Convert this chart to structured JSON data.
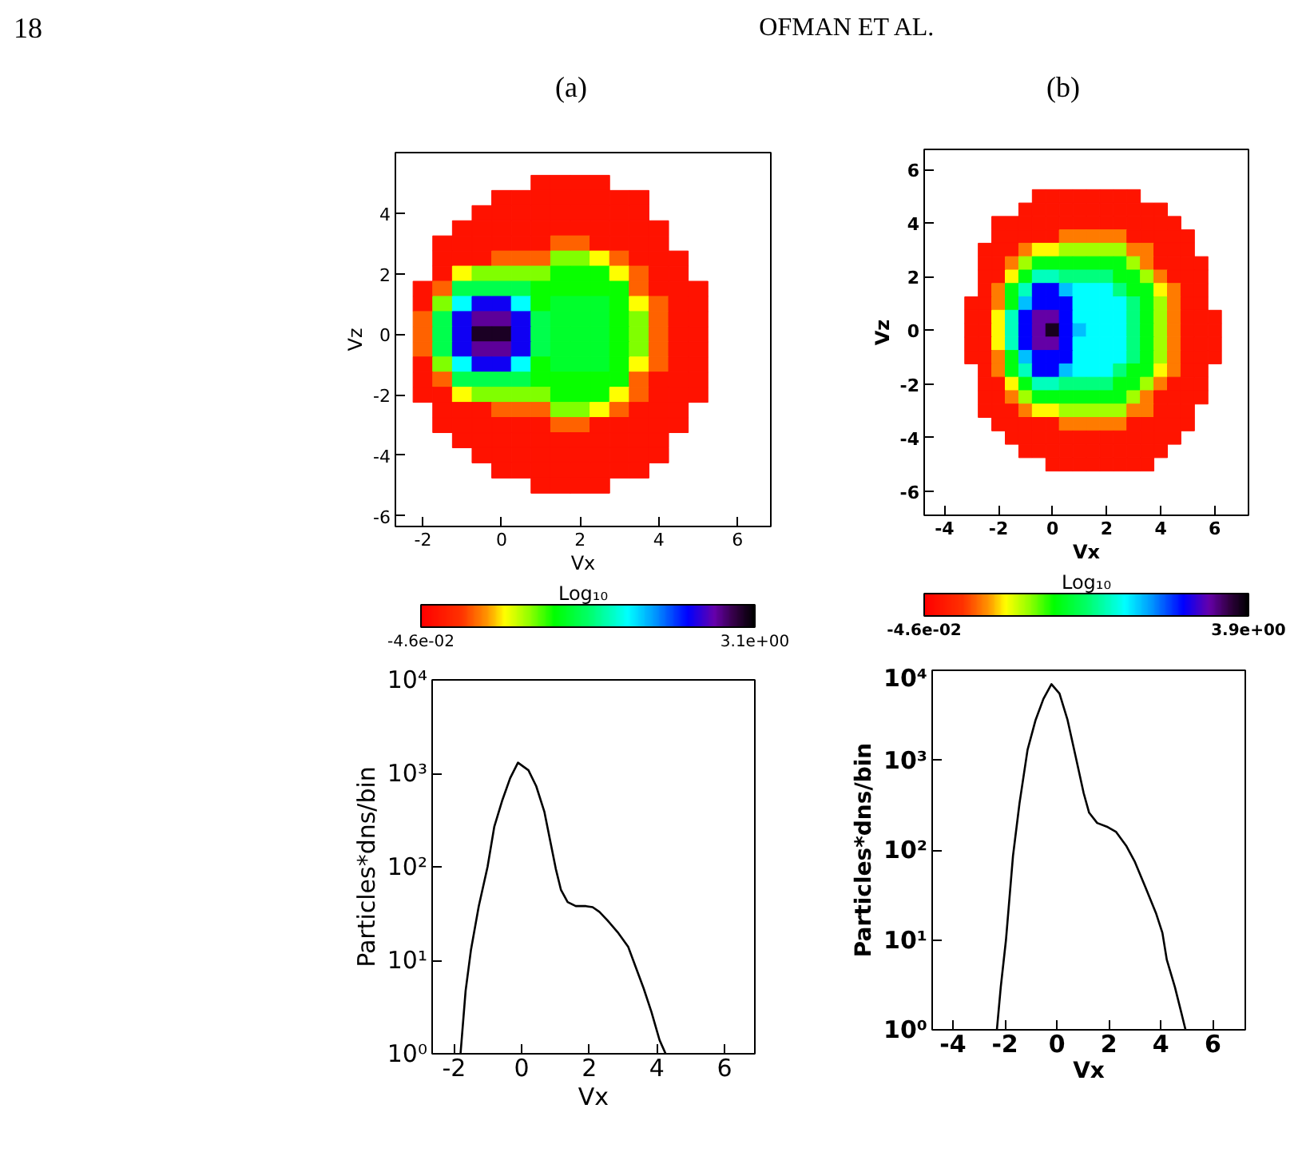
{
  "chart_data": [
    {
      "type": "scatter",
      "title": "(a)",
      "annotations": [
        "18",
        "OFMAN ET AL."
      ],
      "xlabel": "Vx",
      "ylabel": "Vz",
      "clabel": "Log₁₀",
      "marker": "square",
      "xlim": [
        -2.7,
        6.85
      ],
      "ylim": [
        -6.35,
        6.0
      ],
      "xticks": [
        -2,
        0,
        2,
        4,
        6
      ],
      "yticks": [
        -6,
        -4,
        -2,
        0,
        2,
        4
      ],
      "clim": [
        -0.046,
        3.1
      ],
      "cticks": [
        {
          "value": -0.046,
          "label": "-4.6e-02"
        },
        {
          "value": 3.1,
          "label": "3.1e+00"
        }
      ],
      "x": [
        1,
        1.5,
        2,
        2.5,
        0,
        0.5,
        1,
        1.5,
        2,
        2.5,
        3,
        3.5,
        -0.5,
        0,
        0.5,
        1,
        1.5,
        2,
        2.5,
        3,
        3.5,
        -1,
        -0.5,
        0,
        0.5,
        1,
        1.5,
        2,
        2.5,
        3,
        3.5,
        4,
        -1.5,
        -1,
        -0.5,
        0,
        0.5,
        1,
        1.5,
        2,
        2.5,
        3,
        3.5,
        4,
        -1.5,
        -1,
        -0.5,
        0,
        0.5,
        1,
        1.5,
        2,
        2.5,
        3,
        3.5,
        4,
        4.5,
        -1.5,
        -1,
        -0.5,
        0,
        0.5,
        1,
        1.5,
        2,
        2.5,
        3,
        3.5,
        4,
        4.5,
        -2,
        -1.5,
        -1,
        -0.5,
        0,
        0.5,
        1,
        1.5,
        2,
        2.5,
        3,
        3.5,
        4,
        4.5,
        5,
        -2,
        -1.5,
        -1,
        -0.5,
        0,
        0.5,
        1,
        1.5,
        2,
        2.5,
        3,
        3.5,
        4,
        4.5,
        5,
        -2,
        -1.5,
        -1,
        -0.5,
        0,
        0.5,
        1,
        1.5,
        2,
        2.5,
        3,
        3.5,
        4,
        4.5,
        5,
        -2,
        -1.5,
        -1,
        -0.5,
        0,
        0.5,
        1,
        1.5,
        2,
        2.5,
        3,
        3.5,
        4,
        4.5,
        5,
        -2,
        -1.5,
        -1,
        -0.5,
        0,
        0.5,
        1,
        1.5,
        2,
        2.5,
        3,
        3.5,
        4,
        4.5,
        5,
        -2,
        -1.5,
        -1,
        -0.5,
        0,
        0.5,
        1,
        1.5,
        2,
        2.5,
        3,
        3.5,
        4,
        4.5,
        5,
        -2,
        -1.5,
        -1,
        -0.5,
        0,
        0.5,
        1,
        1.5,
        2,
        2.5,
        3,
        3.5,
        4,
        4.5,
        5,
        -2,
        -1.5,
        -1,
        -0.5,
        0,
        0.5,
        1,
        1.5,
        2,
        2.5,
        3,
        3.5,
        4,
        4.5,
        5,
        -1.5,
        -1,
        -0.5,
        0,
        0.5,
        1,
        1.5,
        2,
        2.5,
        3,
        3.5,
        4,
        4.5,
        -1.5,
        -1,
        -0.5,
        0,
        0.5,
        1,
        1.5,
        2,
        2.5,
        3,
        3.5,
        4,
        4.5,
        -1,
        -0.5,
        0,
        0.5,
        1,
        1.5,
        2,
        2.5,
        3,
        3.5,
        4,
        -0.5,
        0,
        0.5,
        1,
        1.5,
        2,
        2.5,
        3,
        3.5,
        4,
        0,
        0.5,
        1,
        1.5,
        2,
        2.5,
        3,
        3.5,
        1,
        1.5,
        2,
        2.5
      ],
      "values": [
        5,
        5,
        5,
        5,
        4.5,
        4.5,
        4.5,
        4.5,
        4.5,
        4.5,
        4.5,
        4.5,
        4,
        4,
        4,
        4,
        4,
        4,
        4,
        4,
        4,
        3.5,
        3.5,
        3.5,
        3.5,
        3.5,
        3.5,
        3.5,
        3.5,
        3.5,
        3.5,
        3.5,
        3,
        3,
        3,
        3,
        3,
        3,
        3,
        3,
        3,
        3,
        3,
        3,
        2.5,
        2.5,
        2.5,
        2.5,
        2.5,
        2.5,
        2.5,
        2.5,
        2.5,
        2.5,
        2.5,
        2.5,
        2.5,
        2,
        2,
        2,
        2,
        2,
        2,
        2,
        2,
        2,
        2,
        2,
        2,
        2,
        1.5,
        1.5,
        1.5,
        1.5,
        1.5,
        1.5,
        1.5,
        1.5,
        1.5,
        1.5,
        1.5,
        1.5,
        1.5,
        1.5,
        1.5,
        1,
        1,
        1,
        1,
        1,
        1,
        1,
        1,
        1,
        1,
        1,
        1,
        1,
        1,
        1,
        0.5,
        0.5,
        0.5,
        0.5,
        0.5,
        0.5,
        0.5,
        0.5,
        0.5,
        0.5,
        0.5,
        0.5,
        0.5,
        0.5,
        0.5,
        0,
        0,
        0,
        0,
        0,
        0,
        0,
        0,
        0,
        0,
        0,
        0,
        0,
        0,
        0,
        -0.5,
        -0.5,
        -0.5,
        -0.5,
        -0.5,
        -0.5,
        -0.5,
        -0.5,
        -0.5,
        -0.5,
        -0.5,
        -0.5,
        -0.5,
        -0.5,
        -0.5,
        -1,
        -1,
        -1,
        -1,
        -1,
        -1,
        -1,
        -1,
        -1,
        -1,
        -1,
        -1,
        -1,
        -1,
        -1,
        -1.5,
        -1.5,
        -1.5,
        -1.5,
        -1.5,
        -1.5,
        -1.5,
        -1.5,
        -1.5,
        -1.5,
        -1.5,
        -1.5,
        -1.5,
        -1.5,
        -1.5,
        -2,
        -2,
        -2,
        -2,
        -2,
        -2,
        -2,
        -2,
        -2,
        -2,
        -2,
        -2,
        -2,
        -2,
        -2,
        -2.5,
        -2.5,
        -2.5,
        -2.5,
        -2.5,
        -2.5,
        -2.5,
        -2.5,
        -2.5,
        -2.5,
        -2.5,
        -2.5,
        -2.5,
        -3,
        -3,
        -3,
        -3,
        -3,
        -3,
        -3,
        -3,
        -3,
        -3,
        -3,
        -3,
        -3,
        -3.5,
        -3.5,
        -3.5,
        -3.5,
        -3.5,
        -3.5,
        -3.5,
        -3.5,
        -3.5,
        -3.5,
        -3.5,
        -4,
        -4,
        -4,
        -4,
        -4,
        -4,
        -4,
        -4,
        -4,
        -4,
        -4.5,
        -4.5,
        -4.5,
        -4.5,
        -4.5,
        -4.5,
        -4.5,
        -4.5,
        -5,
        -5,
        -5,
        -5
      ],
      "cvalues": [
        0.1,
        0.1,
        0.1,
        0.1,
        0.1,
        0.1,
        0.1,
        0.1,
        0.1,
        0.1,
        0.1,
        0.1,
        0.1,
        0.1,
        0.1,
        0.1,
        0.1,
        0.1,
        0.1,
        0.1,
        0.1,
        0.1,
        0.1,
        0.1,
        0.1,
        0.1,
        0.1,
        0.1,
        0.1,
        0.1,
        0.1,
        0.1,
        0.1,
        0.1,
        0.1,
        0.1,
        0.1,
        0.1,
        0.45,
        0.45,
        0.1,
        0.1,
        0.1,
        0.1,
        0.1,
        0.1,
        0.1,
        0.45,
        0.45,
        0.45,
        1.0,
        1.0,
        0.75,
        0.45,
        0.1,
        0.1,
        0.1,
        0.1,
        0.75,
        1.0,
        1.0,
        1.0,
        1.0,
        1.2,
        1.2,
        1.2,
        0.75,
        0.45,
        0.1,
        0.1,
        0.1,
        0.45,
        1.45,
        1.45,
        1.45,
        1.45,
        1.2,
        1.2,
        1.2,
        1.2,
        1.2,
        0.45,
        0.1,
        0.1,
        0.1,
        0.1,
        1.0,
        1.9,
        2.5,
        2.5,
        1.9,
        1.2,
        1.35,
        1.35,
        1.35,
        1.2,
        0.75,
        0.45,
        0.1,
        0.1,
        0.45,
        1.45,
        2.5,
        2.75,
        2.75,
        2.5,
        1.45,
        1.35,
        1.35,
        1.35,
        1.2,
        1.0,
        0.45,
        0.1,
        0.1,
        0.45,
        1.45,
        2.5,
        3.0,
        3.0,
        2.5,
        1.45,
        1.35,
        1.35,
        1.35,
        1.2,
        1.0,
        0.45,
        0.1,
        0.1,
        0.45,
        1.45,
        2.5,
        2.75,
        2.75,
        2.5,
        1.45,
        1.35,
        1.35,
        1.35,
        1.2,
        1.0,
        0.45,
        0.1,
        0.1,
        0.1,
        1.0,
        1.9,
        2.5,
        2.5,
        1.9,
        1.2,
        1.35,
        1.35,
        1.35,
        1.2,
        0.75,
        0.45,
        0.1,
        0.1,
        0.1,
        0.45,
        1.45,
        1.45,
        1.45,
        1.45,
        1.2,
        1.2,
        1.2,
        1.2,
        1.2,
        0.45,
        0.1,
        0.1,
        0.1,
        0.1,
        0.1,
        0.75,
        1.0,
        1.0,
        1.0,
        1.0,
        1.2,
        1.2,
        1.2,
        0.75,
        0.45,
        0.1,
        0.1,
        0.1,
        0.1,
        0.1,
        0.1,
        0.45,
        0.45,
        0.45,
        1.0,
        1.0,
        0.75,
        0.45,
        0.1,
        0.1,
        0.1,
        0.1,
        0.1,
        0.1,
        0.1,
        0.1,
        0.1,
        0.45,
        0.45,
        0.1,
        0.1,
        0.1,
        0.1,
        0.1,
        0.1,
        0.1,
        0.1,
        0.1,
        0.1,
        0.1,
        0.1,
        0.1,
        0.1,
        0.1,
        0.1,
        0.1,
        0.1,
        0.1,
        0.1,
        0.1,
        0.1,
        0.1,
        0.1,
        0.1,
        0.1,
        0.1,
        0.1,
        0.1,
        0.1,
        0.1,
        0.1,
        0.1,
        0.1,
        0.1,
        0.1,
        0.1,
        0.1
      ]
    },
    {
      "type": "scatter",
      "title": "(b)",
      "xlabel": "Vx",
      "ylabel": "Vz",
      "clabel": "Log₁₀",
      "marker": "square",
      "xlim": [
        -4.75,
        7.25
      ],
      "ylim": [
        -6.9,
        6.75
      ],
      "xticks": [
        -4,
        -2,
        0,
        2,
        4,
        6
      ],
      "yticks": [
        -6,
        -4,
        -2,
        0,
        2,
        4,
        6
      ],
      "clim": [
        -0.046,
        3.9
      ],
      "cticks": [
        {
          "value": -0.046,
          "label": "-4.6e-02"
        },
        {
          "value": 3.9,
          "label": "3.9e+00"
        }
      ],
      "x": [
        -0.5,
        0,
        0.5,
        1,
        1.5,
        2,
        2.5,
        3,
        -1,
        -0.5,
        0,
        0.5,
        1,
        1.5,
        2,
        2.5,
        3,
        3.5,
        4,
        -2,
        -1.5,
        -1,
        -0.5,
        0,
        0.5,
        1,
        1.5,
        2,
        2.5,
        3,
        3.5,
        4,
        4.5,
        -2,
        -1.5,
        -1,
        -0.5,
        0,
        0.5,
        1,
        1.5,
        2,
        2.5,
        3,
        3.5,
        4,
        4.5,
        5,
        -2.5,
        -2,
        -1.5,
        -1,
        -0.5,
        0,
        0.5,
        1,
        1.5,
        2,
        2.5,
        3,
        3.5,
        4,
        4.5,
        5,
        -2.5,
        -2,
        -1.5,
        -1,
        -0.5,
        0,
        0.5,
        1,
        1.5,
        2,
        2.5,
        3,
        3.5,
        4,
        4.5,
        5,
        5.5,
        -2.5,
        -2,
        -1.5,
        -1,
        -0.5,
        0,
        0.5,
        1,
        1.5,
        2,
        2.5,
        3,
        3.5,
        4,
        4.5,
        5,
        5.5,
        -2.5,
        -2,
        -1.5,
        -1,
        -0.5,
        0,
        0.5,
        1,
        1.5,
        2,
        2.5,
        3,
        3.5,
        4,
        4.5,
        5,
        5.5,
        -3,
        -2.5,
        -2,
        -1.5,
        -1,
        -0.5,
        0,
        0.5,
        1,
        1.5,
        2,
        2.5,
        3,
        3.5,
        4,
        4.5,
        5,
        5.5,
        -3,
        -2.5,
        -2,
        -1.5,
        -1,
        -0.5,
        0,
        0.5,
        1,
        1.5,
        2,
        2.5,
        3,
        3.5,
        4,
        4.5,
        5,
        5.5,
        6,
        -3,
        -2.5,
        -2,
        -1.5,
        -1,
        -0.5,
        0,
        0.5,
        1,
        1.5,
        2,
        2.5,
        3,
        3.5,
        4,
        4.5,
        5,
        5.5,
        6,
        -3,
        -2.5,
        -2,
        -1.5,
        -1,
        -0.5,
        0,
        0.5,
        1,
        1.5,
        2,
        2.5,
        3,
        3.5,
        4,
        4.5,
        5,
        5.5,
        6,
        -3,
        -2.5,
        -2,
        -1.5,
        -1,
        -0.5,
        0,
        0.5,
        1,
        1.5,
        2,
        2.5,
        3,
        3.5,
        4,
        4.5,
        5,
        5.5,
        6,
        -2.5,
        -2,
        -1.5,
        -1,
        -0.5,
        0,
        0.5,
        1,
        1.5,
        2,
        2.5,
        3,
        3.5,
        4,
        4.5,
        5,
        5.5,
        -2.5,
        -2,
        -1.5,
        -1,
        -0.5,
        0,
        0.5,
        1,
        1.5,
        2,
        2.5,
        3,
        3.5,
        4,
        4.5,
        5,
        5.5,
        -2.5,
        -2,
        -1.5,
        -1,
        -0.5,
        0,
        0.5,
        1,
        1.5,
        2,
        2.5,
        3,
        3.5,
        4,
        4.5,
        5,
        5.5,
        -2.5,
        -2,
        -1.5,
        -1,
        -0.5,
        0,
        0.5,
        1,
        1.5,
        2,
        2.5,
        3,
        3.5,
        4,
        4.5,
        5,
        -2,
        -1.5,
        -1,
        -0.5,
        0,
        0.5,
        1,
        1.5,
        2,
        2.5,
        3,
        3.5,
        4,
        4.5,
        5,
        -1.5,
        -1,
        -0.5,
        0,
        0.5,
        1,
        1.5,
        2,
        2.5,
        3,
        3.5,
        4,
        4.5,
        -1,
        -0.5,
        0,
        0.5,
        1,
        1.5,
        2,
        2.5,
        3,
        3.5,
        4,
        0,
        0.5,
        1,
        1.5,
        2,
        2.5,
        3,
        3.5
      ],
      "values": [
        5,
        5,
        5,
        5,
        5,
        5,
        5,
        5,
        4.5,
        4.5,
        4.5,
        4.5,
        4.5,
        4.5,
        4.5,
        4.5,
        4.5,
        4.5,
        4.5,
        4,
        4,
        4,
        4,
        4,
        4,
        4,
        4,
        4,
        4,
        4,
        4,
        4,
        4,
        3.5,
        3.5,
        3.5,
        3.5,
        3.5,
        3.5,
        3.5,
        3.5,
        3.5,
        3.5,
        3.5,
        3.5,
        3.5,
        3.5,
        3.5,
        3,
        3,
        3,
        3,
        3,
        3,
        3,
        3,
        3,
        3,
        3,
        3,
        3,
        3,
        3,
        3,
        2.5,
        2.5,
        2.5,
        2.5,
        2.5,
        2.5,
        2.5,
        2.5,
        2.5,
        2.5,
        2.5,
        2.5,
        2.5,
        2.5,
        2.5,
        2.5,
        2.5,
        2,
        2,
        2,
        2,
        2,
        2,
        2,
        2,
        2,
        2,
        2,
        2,
        2,
        2,
        2,
        2,
        2,
        1.5,
        1.5,
        1.5,
        1.5,
        1.5,
        1.5,
        1.5,
        1.5,
        1.5,
        1.5,
        1.5,
        1.5,
        1.5,
        1.5,
        1.5,
        1.5,
        1.5,
        1,
        1,
        1,
        1,
        1,
        1,
        1,
        1,
        1,
        1,
        1,
        1,
        1,
        1,
        1,
        1,
        1,
        1,
        0.5,
        0.5,
        0.5,
        0.5,
        0.5,
        0.5,
        0.5,
        0.5,
        0.5,
        0.5,
        0.5,
        0.5,
        0.5,
        0.5,
        0.5,
        0.5,
        0.5,
        0.5,
        0.5,
        0,
        0,
        0,
        0,
        0,
        0,
        0,
        0,
        0,
        0,
        0,
        0,
        0,
        0,
        0,
        0,
        0,
        0,
        0,
        -0.5,
        -0.5,
        -0.5,
        -0.5,
        -0.5,
        -0.5,
        -0.5,
        -0.5,
        -0.5,
        -0.5,
        -0.5,
        -0.5,
        -0.5,
        -0.5,
        -0.5,
        -0.5,
        -0.5,
        -0.5,
        -0.5,
        -1,
        -1,
        -1,
        -1,
        -1,
        -1,
        -1,
        -1,
        -1,
        -1,
        -1,
        -1,
        -1,
        -1,
        -1,
        -1,
        -1,
        -1,
        -1,
        -1.5,
        -1.5,
        -1.5,
        -1.5,
        -1.5,
        -1.5,
        -1.5,
        -1.5,
        -1.5,
        -1.5,
        -1.5,
        -1.5,
        -1.5,
        -1.5,
        -1.5,
        -1.5,
        -1.5,
        -2,
        -2,
        -2,
        -2,
        -2,
        -2,
        -2,
        -2,
        -2,
        -2,
        -2,
        -2,
        -2,
        -2,
        -2,
        -2,
        -2,
        -2.5,
        -2.5,
        -2.5,
        -2.5,
        -2.5,
        -2.5,
        -2.5,
        -2.5,
        -2.5,
        -2.5,
        -2.5,
        -2.5,
        -2.5,
        -2.5,
        -2.5,
        -2.5,
        -2.5,
        -3,
        -3,
        -3,
        -3,
        -3,
        -3,
        -3,
        -3,
        -3,
        -3,
        -3,
        -3,
        -3,
        -3,
        -3,
        -3,
        -3.5,
        -3.5,
        -3.5,
        -3.5,
        -3.5,
        -3.5,
        -3.5,
        -3.5,
        -3.5,
        -3.5,
        -3.5,
        -3.5,
        -3.5,
        -3.5,
        -3.5,
        -4,
        -4,
        -4,
        -4,
        -4,
        -4,
        -4,
        -4,
        -4,
        -4,
        -4,
        -4,
        -4,
        -4.5,
        -4.5,
        -4.5,
        -4.5,
        -4.5,
        -4.5,
        -4.5,
        -4.5,
        -4.5,
        -4.5,
        -4.5,
        -5,
        -5,
        -5,
        -5,
        -5,
        -5,
        -5,
        -5
      ],
      "cvalues": [
        0.15,
        0.15,
        0.15,
        0.15,
        0.15,
        0.15,
        0.15,
        0.15,
        0.15,
        0.15,
        0.15,
        0.15,
        0.15,
        0.15,
        0.15,
        0.15,
        0.15,
        0.15,
        0.15,
        0.15,
        0.15,
        0.15,
        0.15,
        0.15,
        0.15,
        0.15,
        0.15,
        0.15,
        0.15,
        0.15,
        0.15,
        0.15,
        0.15,
        0.15,
        0.15,
        0.15,
        0.15,
        0.15,
        0.66,
        0.66,
        0.66,
        0.66,
        0.66,
        0.15,
        0.15,
        0.15,
        0.15,
        0.15,
        0.15,
        0.15,
        0.15,
        0.66,
        0.94,
        0.94,
        1.2,
        1.2,
        1.2,
        1.2,
        1.2,
        0.66,
        0.66,
        0.15,
        0.15,
        0.15,
        0.15,
        0.15,
        0.66,
        1.2,
        1.6,
        1.6,
        1.6,
        1.6,
        1.6,
        1.6,
        1.6,
        1.2,
        0.66,
        0.15,
        0.15,
        0.15,
        0.15,
        0.15,
        0.15,
        0.94,
        1.6,
        2.2,
        2.2,
        2.0,
        2.0,
        2.0,
        2.0,
        1.6,
        1.6,
        1.2,
        0.66,
        0.15,
        0.15,
        0.15,
        0.15,
        0.66,
        1.6,
        2.2,
        3.1,
        3.1,
        2.6,
        2.4,
        2.4,
        2.4,
        2.0,
        1.6,
        1.6,
        0.94,
        0.66,
        0.15,
        0.15,
        0.15,
        0.15,
        0.66,
        1.6,
        2.6,
        3.1,
        3.1,
        3.1,
        2.4,
        2.4,
        2.4,
        2.4,
        2.0,
        1.6,
        1.2,
        0.66,
        0.15,
        0.15,
        0.15,
        0.15,
        0.94,
        2.2,
        3.1,
        3.43,
        3.43,
        3.1,
        2.4,
        2.4,
        2.4,
        2.4,
        2.0,
        1.6,
        1.2,
        0.66,
        0.15,
        0.15,
        0.15,
        0.15,
        0.15,
        0.94,
        2.2,
        3.1,
        3.43,
        3.78,
        3.1,
        2.6,
        2.4,
        2.4,
        2.4,
        2.0,
        1.6,
        1.2,
        0.66,
        0.15,
        0.15,
        0.15,
        0.15,
        0.15,
        0.94,
        2.2,
        3.1,
        3.43,
        3.43,
        3.1,
        2.4,
        2.4,
        2.4,
        2.4,
        2.0,
        1.6,
        1.2,
        0.66,
        0.15,
        0.15,
        0.15,
        0.15,
        0.15,
        0.66,
        1.6,
        2.6,
        3.1,
        3.1,
        3.1,
        2.4,
        2.4,
        2.4,
        2.4,
        2.0,
        1.6,
        1.2,
        0.66,
        0.15,
        0.15,
        0.15,
        0.15,
        0.66,
        1.6,
        2.2,
        3.1,
        3.1,
        2.6,
        2.4,
        2.4,
        2.4,
        2.0,
        1.6,
        1.6,
        0.94,
        0.66,
        0.15,
        0.15,
        0.15,
        0.15,
        0.94,
        1.6,
        2.2,
        2.2,
        2.0,
        2.0,
        2.0,
        2.0,
        1.6,
        1.6,
        1.2,
        0.66,
        0.15,
        0.15,
        0.15,
        0.15,
        0.15,
        0.66,
        1.2,
        1.6,
        1.6,
        1.6,
        1.6,
        1.6,
        1.6,
        1.6,
        1.2,
        0.66,
        0.15,
        0.15,
        0.15,
        0.15,
        0.15,
        0.15,
        0.15,
        0.66,
        0.94,
        0.94,
        1.2,
        1.2,
        1.2,
        1.2,
        1.2,
        0.66,
        0.66,
        0.15,
        0.15,
        0.15,
        0.15,
        0.15,
        0.15,
        0.15,
        0.15,
        0.66,
        0.66,
        0.66,
        0.66,
        0.66,
        0.15,
        0.15,
        0.15,
        0.15,
        0.15,
        0.15,
        0.15,
        0.15,
        0.15,
        0.15,
        0.15,
        0.15,
        0.15,
        0.15,
        0.15,
        0.15,
        0.15,
        0.15,
        0.15,
        0.15,
        0.15,
        0.15,
        0.15,
        0.15,
        0.15,
        0.15,
        0.15,
        0.15,
        0.15,
        0.15,
        0.15,
        0.15,
        0.15,
        0.15,
        0.15,
        0.15,
        0.15
      ]
    },
    {
      "type": "line",
      "xlabel": "Vx",
      "ylabel": "Particles*dns/bin",
      "log": "y",
      "color": "#000000",
      "xlim": [
        -2.65,
        6.9
      ],
      "ylim": [
        1,
        10000
      ],
      "xticks": [
        -2,
        0,
        2,
        4,
        6
      ],
      "yticks": [
        {
          "value": 1,
          "label": "10⁰"
        },
        {
          "value": 10,
          "label": "10¹"
        },
        {
          "value": 100,
          "label": "10²"
        },
        {
          "value": 1000,
          "label": "10³"
        },
        {
          "value": 10000,
          "label": "10⁴"
        }
      ],
      "x": [
        -1.81,
        -1.66,
        -1.5,
        -1.27,
        -1.01,
        -0.81,
        -0.57,
        -0.34,
        -0.11,
        0.2,
        0.43,
        0.67,
        0.85,
        1.01,
        1.16,
        1.36,
        1.6,
        1.9,
        2.1,
        2.3,
        2.53,
        2.84,
        3.15,
        3.3,
        3.61,
        3.84,
        4.08,
        4.26
      ],
      "values": [
        1,
        4.7,
        13,
        38,
        100,
        270,
        520,
        890,
        1300,
        1080,
        730,
        390,
        185,
        95,
        57,
        42,
        38,
        38,
        37,
        33,
        27,
        20,
        14,
        10,
        5,
        2.8,
        1.4,
        1
      ]
    },
    {
      "type": "line",
      "xlabel": "Vx",
      "ylabel": "Particles*dns/bin",
      "log": "y",
      "color": "#000000",
      "xlim": [
        -4.8,
        7.25
      ],
      "ylim": [
        1,
        10000
      ],
      "xticks": [
        -4,
        -2,
        0,
        2,
        4,
        6
      ],
      "yticks": [
        {
          "value": 1,
          "label": "10⁰"
        },
        {
          "value": 10,
          "label": "10¹"
        },
        {
          "value": 100,
          "label": "10²"
        },
        {
          "value": 1000,
          "label": "10³"
        },
        {
          "value": 10000,
          "label": "10⁴"
        }
      ],
      "x": [
        -2.31,
        -2.16,
        -1.96,
        -1.69,
        -1.44,
        -1.13,
        -0.82,
        -0.52,
        -0.21,
        0.1,
        0.41,
        0.72,
        1.03,
        1.24,
        1.55,
        1.96,
        2.27,
        2.68,
        2.99,
        3.4,
        3.81,
        4.06,
        4.23,
        4.54,
        4.8,
        4.95
      ],
      "values": [
        1,
        3,
        10,
        86,
        330,
        1300,
        2800,
        4800,
        7000,
        5500,
        2800,
        1100,
        430,
        260,
        200,
        180,
        160,
        110,
        75,
        39,
        20,
        12,
        6,
        3,
        1.5,
        1
      ]
    }
  ]
}
